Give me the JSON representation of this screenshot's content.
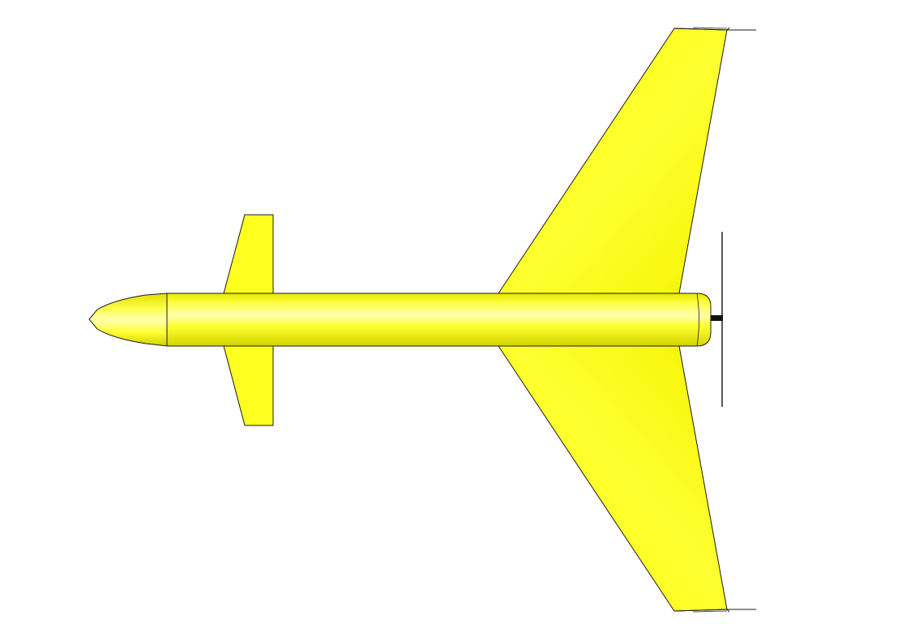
{
  "scene": {
    "subject": "top-view-aircraft-model",
    "background_color": "#ffffff",
    "body_color": "#ffff22",
    "body_highlight": "#ffffaa",
    "body_shadow": "#d8d800",
    "outline_color": "#1a1a1a",
    "propeller_color": "#111111"
  }
}
